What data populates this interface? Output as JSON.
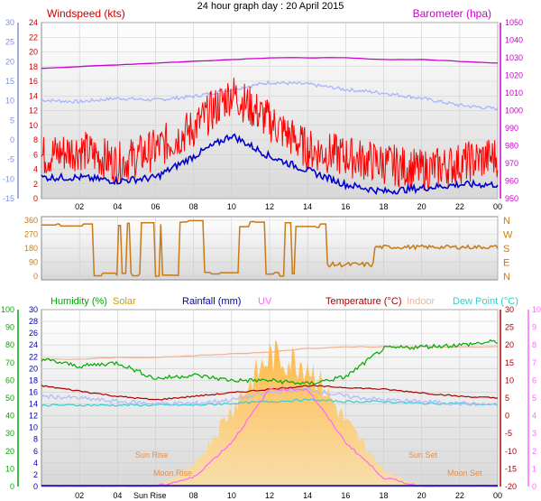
{
  "title": "24 hour graph day : 20 April 2015",
  "x_ticks": [
    "02",
    "04",
    "06",
    "08",
    "10",
    "12",
    "14",
    "16",
    "18",
    "20",
    "22",
    "00"
  ],
  "panel1": {
    "left_label": "Windspeed (kts)",
    "right_label": "Barometer (hpa)",
    "left_ticks": [
      "24",
      "22",
      "20",
      "18",
      "16",
      "14",
      "12",
      "10",
      "8",
      "6",
      "4",
      "2",
      "0"
    ],
    "temp_ticks": [
      "30",
      "25",
      "20",
      "15",
      "10",
      "5",
      "0",
      "-5",
      "-10",
      "-15"
    ],
    "baro_ticks": [
      "1050",
      "1040",
      "1030",
      "1020",
      "1010",
      "1000",
      "990",
      "980",
      "970",
      "960",
      "950"
    ],
    "colors": {
      "gust": "#ff0000",
      "avg": "#0000cc",
      "baro": "#cc00cc",
      "temp": "#a8b4ff"
    }
  },
  "panel2": {
    "left_ticks": [
      "360",
      "270",
      "180",
      "90",
      "0"
    ],
    "right_ticks": [
      "N",
      "W",
      "S",
      "E",
      "N"
    ],
    "color": "#c87a14"
  },
  "panel3": {
    "legend": {
      "humidity": "Humidity (%)",
      "solar": "Solar",
      "rainfall": "Rainfall (mm)",
      "uv": "UV",
      "temperature": "Temperature (°C)",
      "indoor": "Indoor",
      "dewpoint": "Dew Point (°C)"
    },
    "humidity_ticks": [
      "100",
      "90",
      "80",
      "70",
      "60",
      "50",
      "40",
      "30",
      "20",
      "10",
      "0"
    ],
    "rain_ticks": [
      "30",
      "28",
      "26",
      "24",
      "22",
      "20",
      "18",
      "16",
      "14",
      "12",
      "10",
      "8",
      "6",
      "4",
      "2",
      "0"
    ],
    "temp_ticks": [
      "30",
      "25",
      "20",
      "15",
      "10",
      "5",
      "0",
      "-5",
      "-10",
      "-15",
      "-20"
    ],
    "uv_ticks": [
      "10",
      "9",
      "8",
      "7",
      "6",
      "5",
      "4",
      "3",
      "2",
      "1",
      "0"
    ],
    "annotations": {
      "sun_rise": "Sun Rise",
      "moon_rise": "Moon Rise",
      "sun_set": "Sun Set",
      "moon_set": "Moon Set",
      "sun_rise_axis": "Sun Rise"
    },
    "colors": {
      "humidity": "#00aa00",
      "temperature": "#aa0000",
      "indoor": "#f0b090",
      "dewpoint": "#30d0d0",
      "uv": "#ff66ff",
      "solar": "#ffb030",
      "rainfall": "#0000aa"
    }
  },
  "chart_data": [
    {
      "type": "line",
      "x": [
        "00",
        "02",
        "04",
        "06",
        "08",
        "10",
        "12",
        "14",
        "16",
        "18",
        "20",
        "22",
        "00"
      ],
      "series": [
        {
          "values": [
            6,
            7,
            5,
            7,
            10,
            15,
            11,
            7,
            6,
            5,
            4,
            5,
            6
          ]
        },
        {
          "values": [
            3,
            3,
            2.5,
            3,
            6,
            9,
            6,
            4,
            2,
            1,
            1.5,
            2,
            2
          ]
        },
        {
          "values": [
            1006,
            1005,
            1007,
            1006,
            1008,
            1012,
            1016,
            1015,
            1012,
            1010,
            1007,
            1003,
            1001
          ]
        },
        {
          "values": [
            1024,
            1025,
            1026,
            1027,
            1028,
            1029,
            1030,
            1030,
            1030,
            1029,
            1029,
            1028,
            1027
          ]
        }
      ],
      "left_ylim": [
        0,
        25
      ],
      "right_ylim": [
        950,
        1050
      ]
    },
    {
      "type": "scatter",
      "x": [
        "00",
        "02",
        "04",
        "06",
        "08",
        "10",
        "12",
        "14",
        "16",
        "18",
        "20",
        "22",
        "00"
      ],
      "series": [
        {
          "values": [
            330,
            90,
            350,
            100,
            0,
            350,
            0,
            340,
            70,
            180,
            200,
            190,
            180
          ]
        }
      ],
      "ylim": [
        0,
        360
      ]
    },
    {
      "type": "line",
      "x": [
        "00",
        "02",
        "04",
        "06",
        "08",
        "10",
        "12",
        "14",
        "16",
        "18",
        "20",
        "22",
        "00"
      ],
      "series": [
        {
          "values": [
            72,
            68,
            70,
            61,
            63,
            60,
            60,
            58,
            62,
            78,
            79,
            80,
            82
          ]
        },
        {
          "values": [
            8.5,
            7,
            5.5,
            4.5,
            5.5,
            6.5,
            7.5,
            8.5,
            8,
            7.5,
            6.5,
            5.5,
            5
          ]
        },
        {
          "values": [
            5.5,
            5,
            4,
            3.5,
            3.5,
            4.5,
            6.5,
            7.5,
            5.5,
            4.5,
            4,
            3.5,
            3
          ]
        },
        {
          "values": [
            3,
            3,
            3,
            3,
            3,
            3.5,
            4,
            4.5,
            4,
            4,
            3.5,
            3.5,
            3
          ]
        },
        {
          "values": [
            16,
            16,
            16.5,
            16.5,
            17,
            17.5,
            18,
            19,
            19.5,
            19.5,
            19.5,
            19.5,
            19.5
          ]
        },
        {
          "values": [
            0,
            0,
            0,
            0,
            0.5,
            2.5,
            5.5,
            5.5,
            2.5,
            0.5,
            0,
            0,
            0
          ]
        },
        {
          "values": [
            0,
            0,
            0,
            0,
            120,
            480,
            800,
            760,
            400,
            100,
            0,
            0,
            0
          ]
        }
      ],
      "humidity_ylim": [
        0,
        100
      ],
      "temp_ylim": [
        -20,
        30
      ],
      "uv_ylim": [
        0,
        10
      ]
    }
  ]
}
